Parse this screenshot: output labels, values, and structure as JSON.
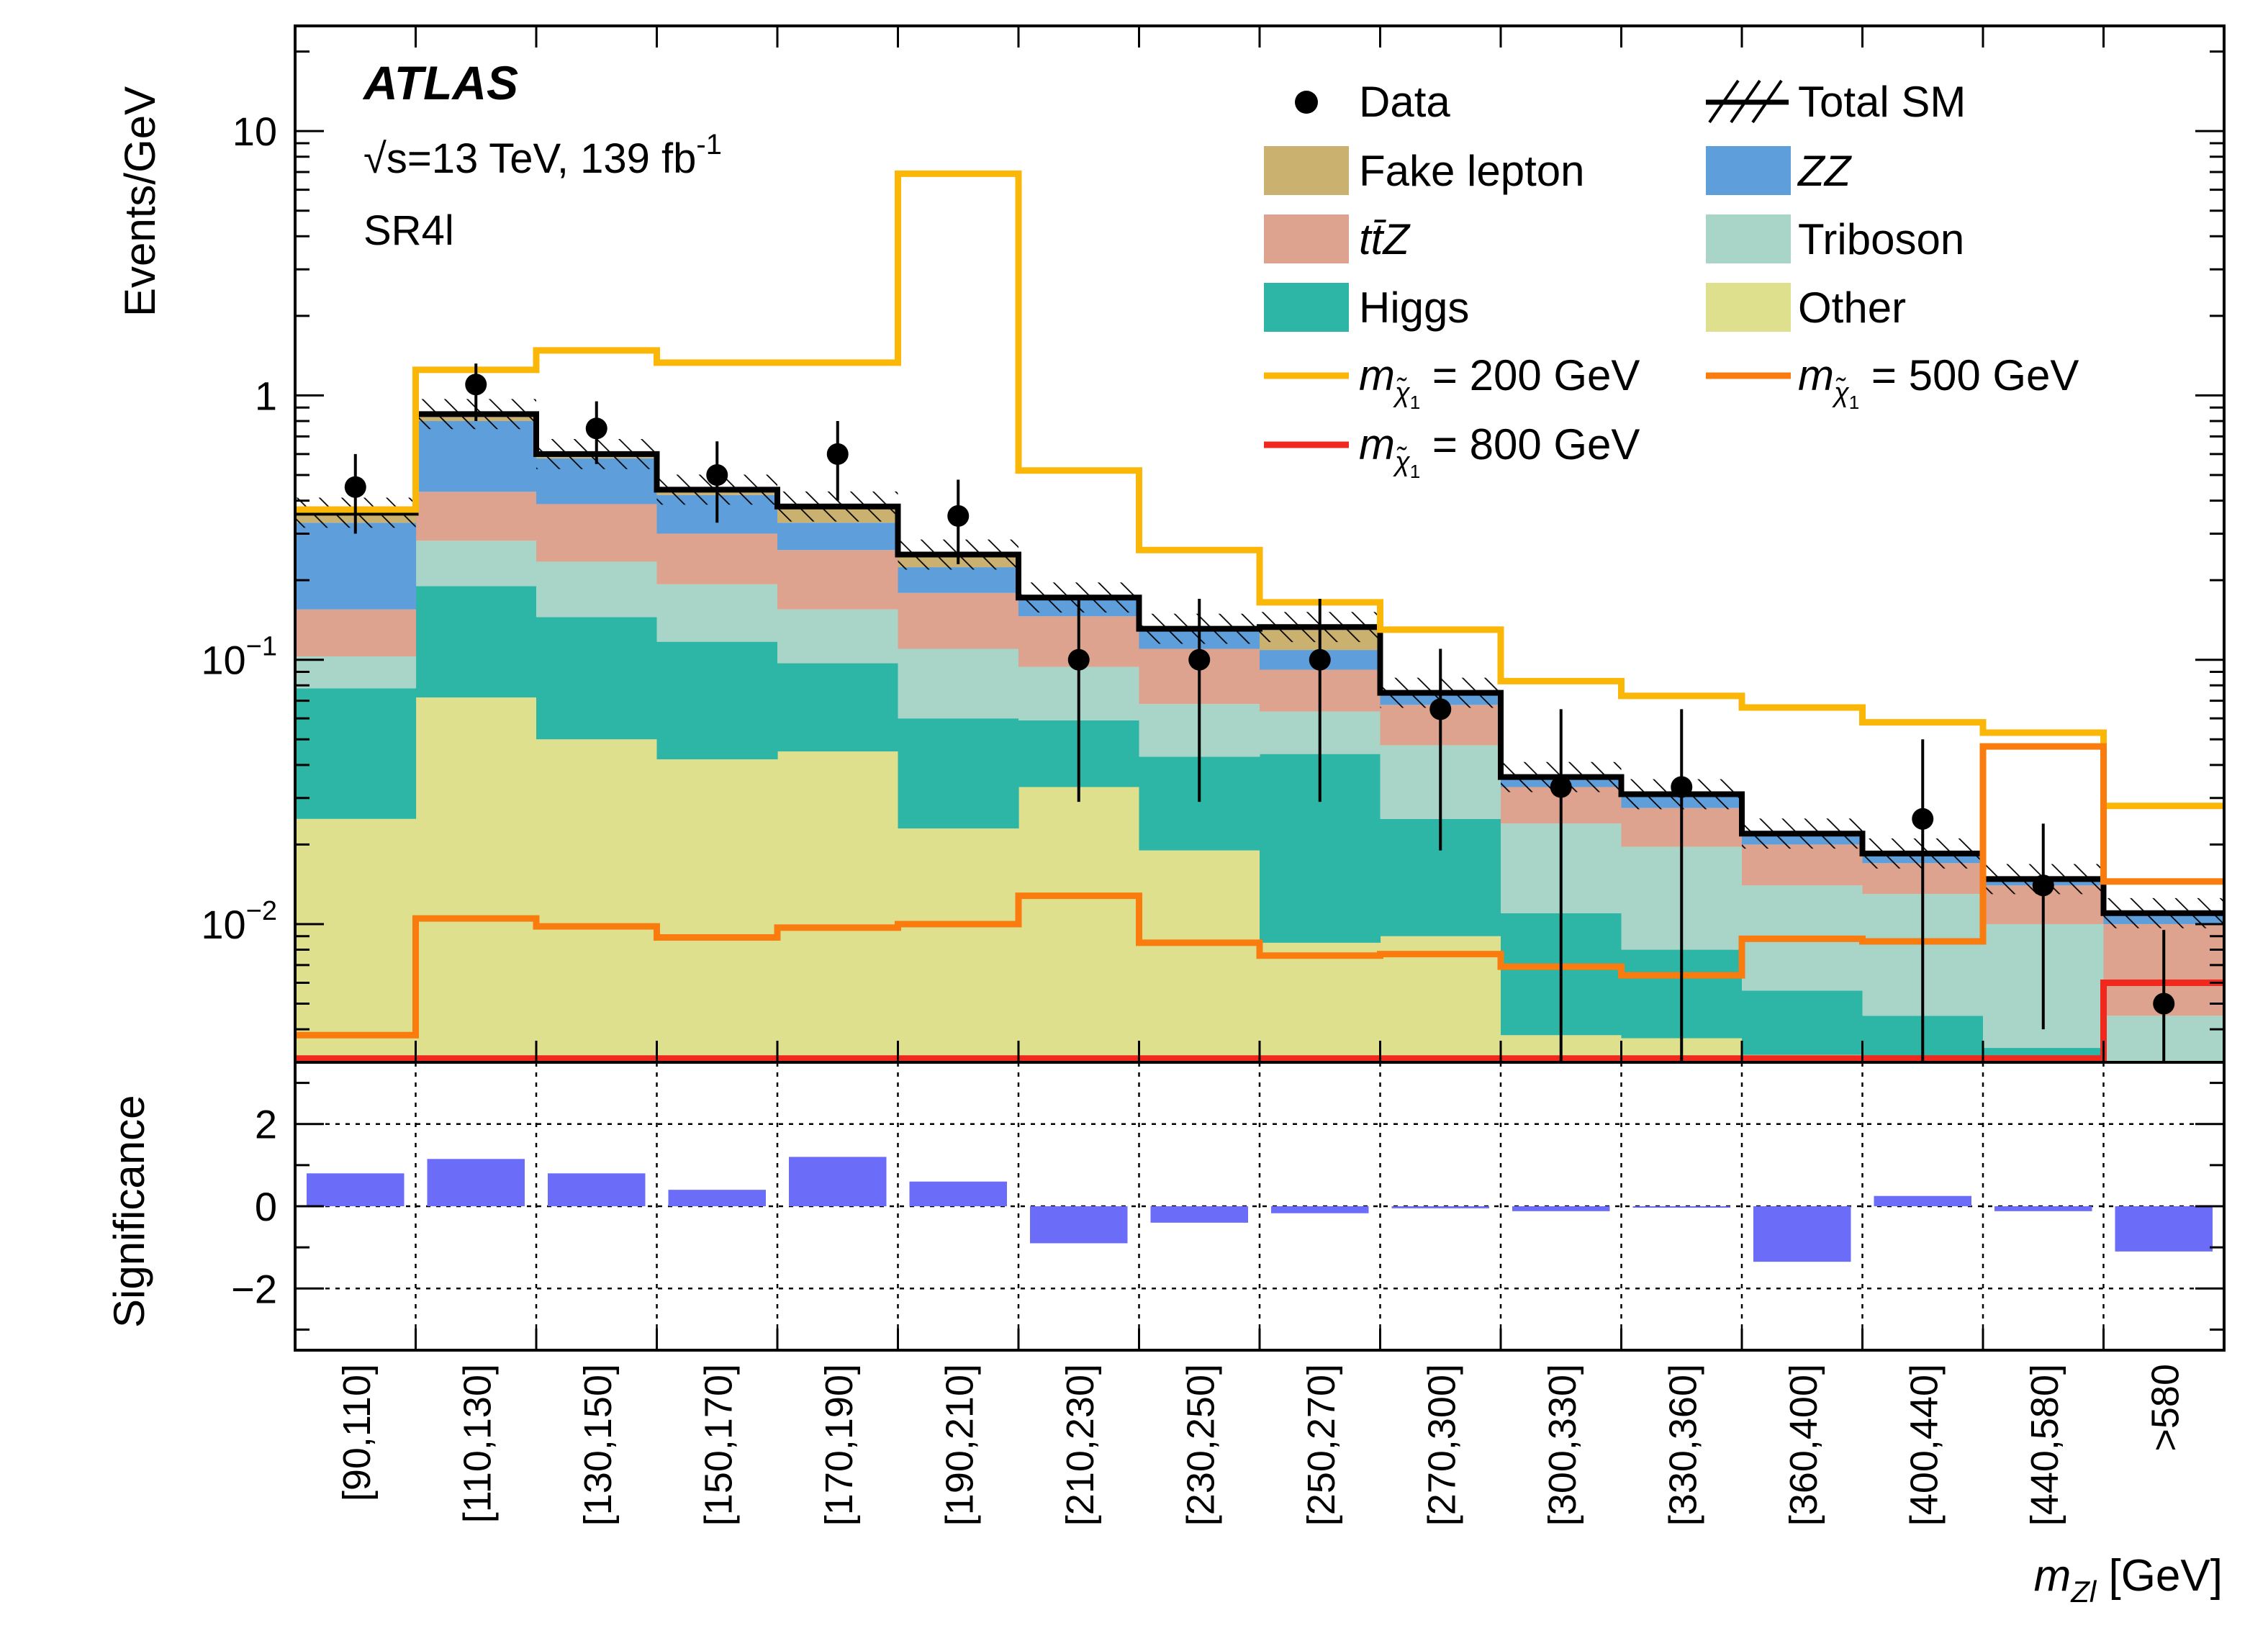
{
  "chart_data": {
    "type": "bar",
    "subtype": "stacked-histogram-log",
    "experiment_label": "ATLAS",
    "energy_label_sqrt": "√s",
    "energy_label_rest": "=13 TeV, 139 fb",
    "energy_label_exp": "-1",
    "region_label": "SR4l",
    "ylabel": "Events/GeV",
    "ratio_ylabel": "Significance",
    "xlabel_var": "m",
    "xlabel_sub": "Zl",
    "xlabel_unit": " [GeV]",
    "log_y": true,
    "ylim": [
      0.003,
      25
    ],
    "ratio_ylim": [
      -3.5,
      3.5
    ],
    "y_ticks": [
      {
        "value": 10,
        "base": "10",
        "exp": ""
      },
      {
        "value": 1,
        "base": "1",
        "exp": ""
      },
      {
        "value": 0.1,
        "base": "10",
        "exp": "−1"
      },
      {
        "value": 0.01,
        "base": "10",
        "exp": "−2"
      }
    ],
    "ratio_ticks": [
      {
        "value": 2,
        "label": "2"
      },
      {
        "value": 0,
        "label": "0"
      },
      {
        "value": -2,
        "label": "−2"
      }
    ],
    "categories": [
      "[90,110]",
      "[110,130]",
      "[130,150]",
      "[150,170]",
      "[170,190]",
      "[190,210]",
      "[210,230]",
      "[230,250]",
      "[250,270]",
      "[270,300]",
      "[300,330]",
      "[330,360]",
      "[360,400]",
      "[400,440]",
      "[440,580]",
      ">580"
    ],
    "background_stack": [
      {
        "name": "Other",
        "color": "#dee08e",
        "values": [
          0.025,
          0.072,
          0.05,
          0.042,
          0.045,
          0.023,
          0.033,
          0.019,
          0.0085,
          0.009,
          0.0038,
          0.0037,
          0.0032,
          0.003,
          0.003,
          0.003
        ]
      },
      {
        "name": "Higgs",
        "color": "#2db5a5",
        "values": [
          0.053,
          0.118,
          0.095,
          0.075,
          0.052,
          0.037,
          0.026,
          0.024,
          0.0355,
          0.016,
          0.0072,
          0.0043,
          0.0024,
          0.0015,
          0.0004,
          0.0
        ]
      },
      {
        "name": "Triboson",
        "color": "#a8d5c8",
        "values": [
          0.025,
          0.092,
          0.09,
          0.076,
          0.058,
          0.05,
          0.035,
          0.025,
          0.0197,
          0.0225,
          0.013,
          0.0116,
          0.0084,
          0.0085,
          0.0066,
          0.0015
        ]
      },
      {
        "name": "tt̄Z",
        "color": "#dda38e",
        "values": [
          0.052,
          0.15,
          0.153,
          0.107,
          0.105,
          0.069,
          0.052,
          0.042,
          0.028,
          0.02,
          0.009,
          0.0079,
          0.006,
          0.004,
          0.004,
          0.0055
        ]
      },
      {
        "name": "ZZ",
        "color": "#5e9fdb",
        "values": [
          0.175,
          0.368,
          0.19,
          0.12,
          0.07,
          0.045,
          0.026,
          0.021,
          0.0172,
          0.0075,
          0.003,
          0.003,
          0.0018,
          0.0015,
          0.0008,
          0.001
        ]
      },
      {
        "name": "Fake lepton",
        "color": "#cbb16f",
        "values": [
          0.03,
          0.05,
          0.022,
          0.02,
          0.05,
          0.026,
          0.0,
          0.0,
          0.024,
          0.0,
          0.0,
          0.0,
          0.0,
          0.0,
          0.0,
          0.0
        ]
      }
    ],
    "total_sm": {
      "name": "Total SM",
      "values": [
        0.36,
        0.85,
        0.6,
        0.44,
        0.38,
        0.25,
        0.172,
        0.131,
        0.133,
        0.075,
        0.036,
        0.031,
        0.022,
        0.0185,
        0.0148,
        0.011
      ]
    },
    "data": {
      "name": "Data",
      "values": [
        0.45,
        1.1,
        0.75,
        0.5,
        0.6,
        0.35,
        0.1,
        0.1,
        0.1,
        0.065,
        0.033,
        0.033,
        null,
        0.025,
        0.014,
        0.005
      ],
      "err_low": [
        0.3,
        0.8,
        0.55,
        0.33,
        0.4,
        0.23,
        0.029,
        0.029,
        0.029,
        0.019,
        0.0025,
        0.0025,
        null,
        0.0025,
        0.004,
        0.0025
      ],
      "err_high": [
        0.6,
        1.32,
        0.95,
        0.67,
        0.8,
        0.48,
        0.17,
        0.17,
        0.17,
        0.11,
        0.065,
        0.065,
        null,
        0.05,
        0.024,
        0.0095
      ]
    },
    "signals": [
      {
        "name_prefix": "m",
        "name_sub": "χ̃",
        "name_subsub": "1",
        "name_value": " = 200 GeV",
        "color": "#fbb707",
        "values": [
          0.37,
          1.25,
          1.48,
          1.33,
          1.33,
          6.9,
          0.52,
          0.26,
          0.165,
          0.13,
          0.083,
          0.073,
          0.066,
          0.058,
          0.053,
          0.028
        ]
      },
      {
        "name_prefix": "m",
        "name_sub": "χ̃",
        "name_subsub": "1",
        "name_value": " = 500 GeV",
        "color": "#fa7b0e",
        "values": [
          0.0038,
          0.0105,
          0.0098,
          0.0089,
          0.0097,
          0.01,
          0.0128,
          0.0085,
          0.0076,
          0.0077,
          0.0069,
          0.0064,
          0.0088,
          0.0086,
          0.047,
          0.0145
        ]
      },
      {
        "name_prefix": "m",
        "name_sub": "χ̃",
        "name_subsub": "1",
        "name_value": " = 800 GeV",
        "color": "#f0281e",
        "values": [
          0.0031,
          0.0031,
          0.0031,
          0.0031,
          0.0031,
          0.0031,
          0.0031,
          0.0031,
          0.0031,
          0.0031,
          0.0031,
          0.0031,
          0.0031,
          0.0031,
          0.0031,
          0.006
        ]
      }
    ],
    "significance": {
      "color": "#6b6cf8",
      "values": [
        0.8,
        1.15,
        0.8,
        0.4,
        1.2,
        0.6,
        -0.9,
        -0.4,
        -0.17,
        -0.05,
        -0.12,
        -0.03,
        -1.35,
        0.25,
        -0.12,
        -1.1
      ]
    },
    "legend": {
      "placement": "top-right",
      "data": "Data",
      "total_sm": "Total SM",
      "fake": "Fake lepton",
      "zz": "ZZ",
      "ttz": "tt̄Z",
      "tribosons": "Triboson",
      "higgs": "Higgs",
      "other": "Other",
      "sig200": " = 200 GeV",
      "sig500": " = 500 GeV",
      "sig800": " = 800 GeV"
    },
    "grid": "ratio-panel dotted"
  }
}
